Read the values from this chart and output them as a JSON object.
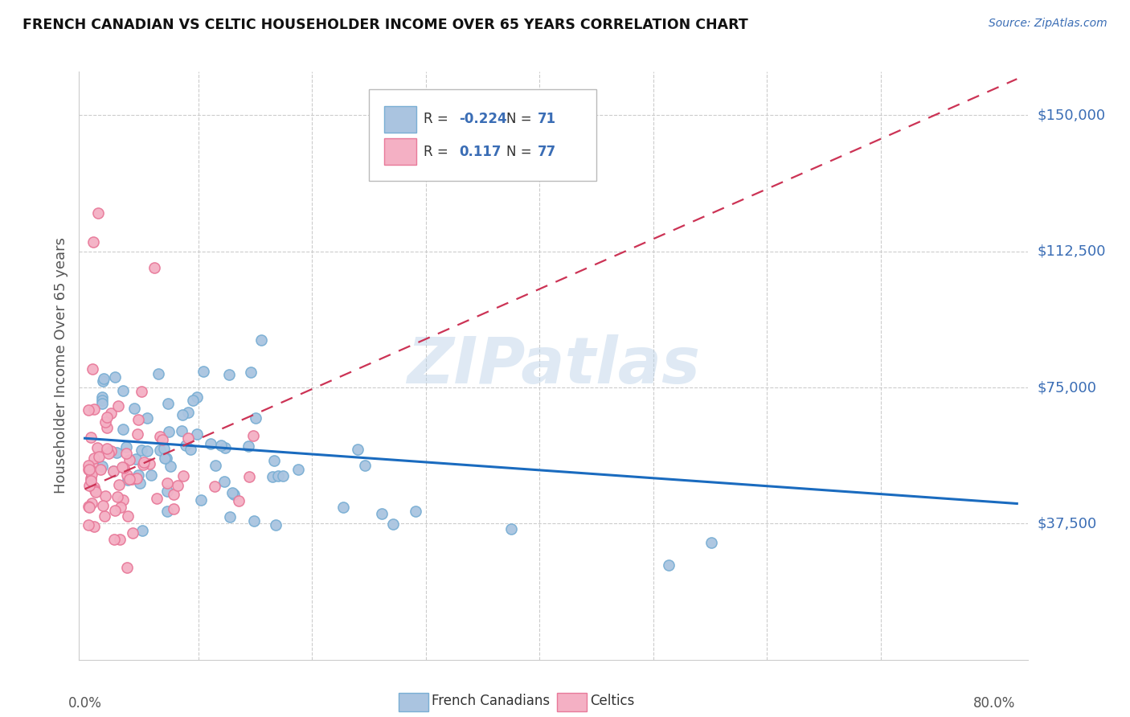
{
  "title": "FRENCH CANADIAN VS CELTIC HOUSEHOLDER INCOME OVER 65 YEARS CORRELATION CHART",
  "source": "Source: ZipAtlas.com",
  "ylabel": "Householder Income Over 65 years",
  "xlim": [
    -0.005,
    0.83
  ],
  "ylim": [
    0,
    162000
  ],
  "ytick_vals": [
    37500,
    75000,
    112500,
    150000
  ],
  "ytick_labels": [
    "$37,500",
    "$75,000",
    "$112,500",
    "$150,000"
  ],
  "blue_R": -0.224,
  "blue_N": 71,
  "pink_R": 0.117,
  "pink_N": 77,
  "blue_color": "#aac4e0",
  "blue_edge": "#7aafd4",
  "pink_color": "#f4b0c4",
  "pink_edge": "#e87a9a",
  "blue_line_color": "#1a6bbf",
  "pink_line_color": "#cc3355",
  "watermark_color": "#b8d0e8",
  "grid_color": "#cccccc",
  "title_color": "#111111",
  "source_color": "#3a6db5",
  "label_color": "#555555",
  "ytick_color": "#3a6db5",
  "legend_text_color": "#3a6db5",
  "watermark": "ZIPatlas",
  "blue_trend_x": [
    0.0,
    0.82
  ],
  "blue_trend_y": [
    61000,
    43000
  ],
  "pink_trend_x": [
    0.0,
    0.82
  ],
  "pink_trend_y": [
    47000,
    160000
  ]
}
